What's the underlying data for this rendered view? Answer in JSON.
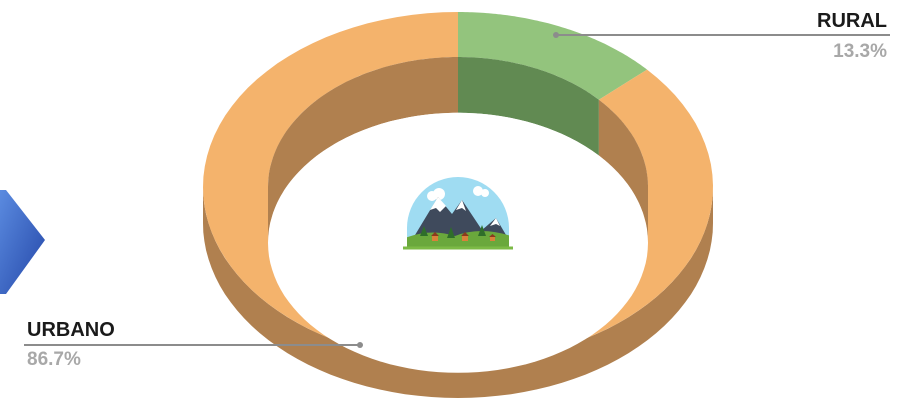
{
  "chart_data": {
    "type": "pie",
    "style": "3d-donut",
    "labels": [
      "RURAL",
      "URBANO"
    ],
    "values": [
      13.3,
      86.7
    ],
    "value_labels": [
      "13.3%",
      "86.7%"
    ],
    "colors": {
      "RURAL": {
        "top": "#93c47d",
        "side": "#618a52"
      },
      "URBANO": {
        "top": "#f4b36c",
        "side": "#b0804f"
      }
    }
  },
  "center_icon": "mountain-village-icon",
  "decor": {
    "left_arrow_color": "#2f5fc4"
  }
}
